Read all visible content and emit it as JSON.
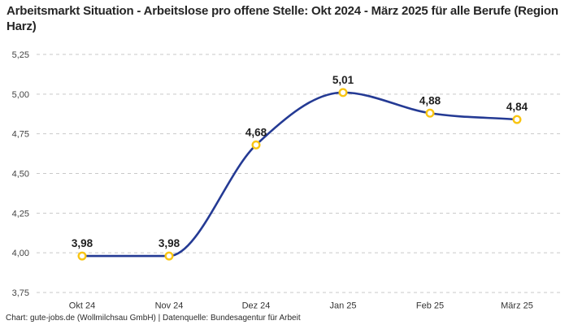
{
  "footer": {
    "credit": "Chart: gute-jobs.de (Wollmilchsau GmbH) | Datenquelle: Bundesagentur für Arbeit"
  },
  "chart_data": {
    "type": "line",
    "title": "Arbeitsmarkt Situation - Arbeitslose pro offene Stelle: Okt 2024 - März 2025 für alle Berufe (Region Harz)",
    "xlabel": "",
    "ylabel": "",
    "categories": [
      "Okt 24",
      "Nov 24",
      "Dez 24",
      "Jan 25",
      "Feb 25",
      "März 25"
    ],
    "values": [
      3.98,
      3.98,
      4.68,
      5.01,
      4.88,
      4.84
    ],
    "point_labels": [
      "3,98",
      "3,98",
      "4,68",
      "5,01",
      "4,88",
      "4,84"
    ],
    "yticks": [
      5.25,
      5.0,
      4.75,
      4.5,
      4.25,
      4.0,
      3.75
    ],
    "ytick_labels": [
      "5,25",
      "5,00",
      "4,75",
      "4,50",
      "4,25",
      "4,00",
      "3,75"
    ],
    "ylim": [
      3.75,
      5.25
    ],
    "grid": "horizontal-dashed",
    "legend": "none",
    "curve": "monotone",
    "colors": {
      "line": "#243a94",
      "marker_stroke": "#f9c513",
      "marker_fill": "#ffffff",
      "grid": "#c9c9c9",
      "point_label": "#1f1f1f",
      "title": "#262626"
    }
  }
}
